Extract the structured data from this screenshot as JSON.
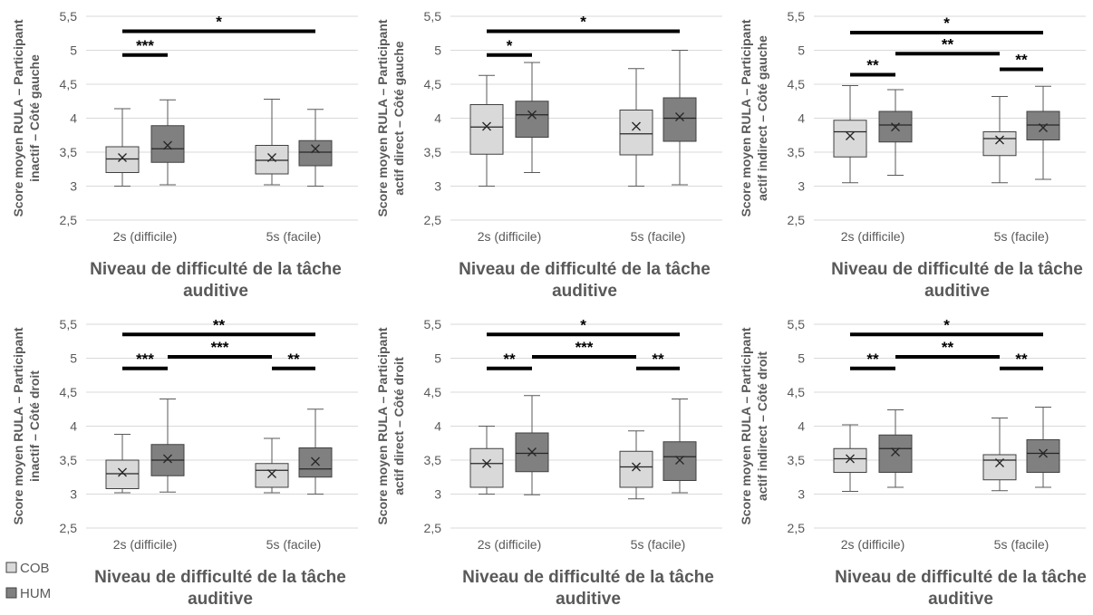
{
  "legend": [
    {
      "label": "COB",
      "color": "#d9d9d9"
    },
    {
      "label": "HUM",
      "color": "#808080"
    }
  ],
  "chart_data": [
    {
      "type": "box",
      "ylabel_line1": "Score moyen RULA – Participant",
      "ylabel_line2": "inactif – Côté gauche",
      "xlabel_line1": "Niveau de difficulté de la tâche",
      "xlabel_line2": "auditive",
      "categories": [
        "2s (difficile)",
        "5s (facile)"
      ],
      "yticks": [
        "2,5",
        "3",
        "3,5",
        "4",
        "4,5",
        "5",
        "5,5"
      ],
      "ylim": [
        2.5,
        5.5
      ],
      "series": [
        {
          "name": "COB",
          "boxes": [
            {
              "min": 3.0,
              "q1": 3.2,
              "median": 3.4,
              "q3": 3.58,
              "max": 4.14,
              "mean": 3.42
            },
            {
              "min": 3.02,
              "q1": 3.18,
              "median": 3.38,
              "q3": 3.6,
              "max": 4.28,
              "mean": 3.42
            }
          ]
        },
        {
          "name": "HUM",
          "boxes": [
            {
              "min": 3.02,
              "q1": 3.35,
              "median": 3.55,
              "q3": 3.89,
              "max": 4.27,
              "mean": 3.6
            },
            {
              "min": 3.0,
              "q1": 3.3,
              "median": 3.5,
              "q3": 3.67,
              "max": 4.13,
              "mean": 3.55
            }
          ]
        }
      ],
      "significance": [
        {
          "label": "***",
          "from": "2s-COB",
          "to": "2s-HUM",
          "y": 4.93
        },
        {
          "label": "*",
          "from": "2s-COB",
          "to": "5s-HUM",
          "y": 5.28
        }
      ]
    },
    {
      "type": "box",
      "ylabel_line1": "Score moyen RULA – Participant",
      "ylabel_line2": "actif direct – Côté gauche",
      "xlabel_line1": "Niveau de difficulté de la tâche",
      "xlabel_line2": "auditive",
      "categories": [
        "2s (difficile)",
        "5s (facile)"
      ],
      "yticks": [
        "2,5",
        "3",
        "3,5",
        "4",
        "4,5",
        "5",
        "5,5"
      ],
      "ylim": [
        2.5,
        5.5
      ],
      "series": [
        {
          "name": "COB",
          "boxes": [
            {
              "min": 3.0,
              "q1": 3.47,
              "median": 3.87,
              "q3": 4.2,
              "max": 4.63,
              "mean": 3.88
            },
            {
              "min": 3.0,
              "q1": 3.46,
              "median": 3.77,
              "q3": 4.12,
              "max": 4.73,
              "mean": 3.88
            }
          ]
        },
        {
          "name": "HUM",
          "boxes": [
            {
              "min": 3.2,
              "q1": 3.72,
              "median": 4.05,
              "q3": 4.25,
              "max": 4.82,
              "mean": 4.05
            },
            {
              "min": 3.02,
              "q1": 3.66,
              "median": 4.0,
              "q3": 4.3,
              "max": 5.0,
              "mean": 4.02
            }
          ]
        }
      ],
      "significance": [
        {
          "label": "*",
          "from": "2s-COB",
          "to": "2s-HUM",
          "y": 4.93
        },
        {
          "label": "*",
          "from": "2s-COB",
          "to": "5s-HUM",
          "y": 5.28
        }
      ]
    },
    {
      "type": "box",
      "ylabel_line1": "Score moyen RULA – Participant",
      "ylabel_line2": "actif indirect – Côté gauche",
      "xlabel_line1": "Niveau de difficulté de la tâche",
      "xlabel_line2": "auditive",
      "categories": [
        "2s (difficile)",
        "5s (facile)"
      ],
      "yticks": [
        "2,5",
        "3",
        "3,5",
        "4",
        "4,5",
        "5",
        "5,5"
      ],
      "ylim": [
        2.5,
        5.5
      ],
      "series": [
        {
          "name": "COB",
          "boxes": [
            {
              "min": 3.05,
              "q1": 3.43,
              "median": 3.8,
              "q3": 3.97,
              "max": 4.48,
              "mean": 3.74
            },
            {
              "min": 3.05,
              "q1": 3.45,
              "median": 3.7,
              "q3": 3.8,
              "max": 4.32,
              "mean": 3.68
            }
          ]
        },
        {
          "name": "HUM",
          "boxes": [
            {
              "min": 3.16,
              "q1": 3.65,
              "median": 3.9,
              "q3": 4.1,
              "max": 4.42,
              "mean": 3.87
            },
            {
              "min": 3.1,
              "q1": 3.68,
              "median": 3.9,
              "q3": 4.1,
              "max": 4.47,
              "mean": 3.86
            }
          ]
        }
      ],
      "significance": [
        {
          "label": "**",
          "from": "2s-COB",
          "to": "2s-HUM",
          "y": 4.64
        },
        {
          "label": "**",
          "from": "5s-COB",
          "to": "5s-HUM",
          "y": 4.72
        },
        {
          "label": "**",
          "from": "2s-HUM",
          "to": "5s-COB",
          "y": 4.95
        },
        {
          "label": "*",
          "from": "2s-COB",
          "to": "5s-HUM",
          "y": 5.26
        }
      ]
    },
    {
      "type": "box",
      "ylabel_line1": "Score moyen RULA – Participant",
      "ylabel_line2": "inactif – Côté droit",
      "xlabel_line1": "Niveau de difficulté de la tâche",
      "xlabel_line2": "auditive",
      "categories": [
        "2s (difficile)",
        "5s (facile)"
      ],
      "yticks": [
        "2,5",
        "3",
        "3,5",
        "4",
        "4,5",
        "5",
        "5,5"
      ],
      "ylim": [
        2.5,
        5.5
      ],
      "series": [
        {
          "name": "COB",
          "boxes": [
            {
              "min": 3.02,
              "q1": 3.08,
              "median": 3.3,
              "q3": 3.5,
              "max": 3.88,
              "mean": 3.32
            },
            {
              "min": 3.02,
              "q1": 3.1,
              "median": 3.35,
              "q3": 3.45,
              "max": 3.82,
              "mean": 3.3
            }
          ]
        },
        {
          "name": "HUM",
          "boxes": [
            {
              "min": 3.03,
              "q1": 3.27,
              "median": 3.5,
              "q3": 3.73,
              "max": 4.4,
              "mean": 3.52
            },
            {
              "min": 3.0,
              "q1": 3.25,
              "median": 3.37,
              "q3": 3.68,
              "max": 4.25,
              "mean": 3.48
            }
          ]
        }
      ],
      "significance": [
        {
          "label": "***",
          "from": "2s-COB",
          "to": "2s-HUM",
          "y": 4.85
        },
        {
          "label": "**",
          "from": "5s-COB",
          "to": "5s-HUM",
          "y": 4.85
        },
        {
          "label": "***",
          "from": "2s-HUM",
          "to": "5s-COB",
          "y": 5.02
        },
        {
          "label": "**",
          "from": "2s-COB",
          "to": "5s-HUM",
          "y": 5.35
        }
      ]
    },
    {
      "type": "box",
      "ylabel_line1": "Score moyen RULA – Participant",
      "ylabel_line2": "actif direct – Côté droit",
      "xlabel_line1": "Niveau de difficulté de la tâche",
      "xlabel_line2": "auditive",
      "categories": [
        "2s (difficile)",
        "5s (facile)"
      ],
      "yticks": [
        "2,5",
        "3",
        "3,5",
        "4",
        "4,5",
        "5",
        "5,5"
      ],
      "ylim": [
        2.5,
        5.5
      ],
      "series": [
        {
          "name": "COB",
          "boxes": [
            {
              "min": 3.0,
              "q1": 3.1,
              "median": 3.45,
              "q3": 3.67,
              "max": 4.0,
              "mean": 3.45
            },
            {
              "min": 2.93,
              "q1": 3.1,
              "median": 3.4,
              "q3": 3.63,
              "max": 3.93,
              "mean": 3.4
            }
          ]
        },
        {
          "name": "HUM",
          "boxes": [
            {
              "min": 2.99,
              "q1": 3.33,
              "median": 3.6,
              "q3": 3.9,
              "max": 4.45,
              "mean": 3.62
            },
            {
              "min": 3.02,
              "q1": 3.2,
              "median": 3.55,
              "q3": 3.77,
              "max": 4.4,
              "mean": 3.5
            }
          ]
        }
      ],
      "significance": [
        {
          "label": "**",
          "from": "2s-COB",
          "to": "2s-HUM",
          "y": 4.85
        },
        {
          "label": "**",
          "from": "5s-COB",
          "to": "5s-HUM",
          "y": 4.85
        },
        {
          "label": "***",
          "from": "2s-HUM",
          "to": "5s-COB",
          "y": 5.02
        },
        {
          "label": "*",
          "from": "2s-COB",
          "to": "5s-HUM",
          "y": 5.35
        }
      ]
    },
    {
      "type": "box",
      "ylabel_line1": "Score moyen RULA – Participant",
      "ylabel_line2": "actif indirect – Côté droit",
      "xlabel_line1": "Niveau de difficulté de la tâche",
      "xlabel_line2": "auditive",
      "categories": [
        "2s (difficile)",
        "5s (facile)"
      ],
      "yticks": [
        "2,5",
        "3",
        "3,5",
        "4",
        "4,5",
        "5",
        "5,5"
      ],
      "ylim": [
        2.5,
        5.5
      ],
      "series": [
        {
          "name": "COB",
          "boxes": [
            {
              "min": 3.04,
              "q1": 3.32,
              "median": 3.52,
              "q3": 3.67,
              "max": 4.02,
              "mean": 3.52
            },
            {
              "min": 3.05,
              "q1": 3.21,
              "median": 3.5,
              "q3": 3.58,
              "max": 4.12,
              "mean": 3.46
            }
          ]
        },
        {
          "name": "HUM",
          "boxes": [
            {
              "min": 3.1,
              "q1": 3.32,
              "median": 3.67,
              "q3": 3.87,
              "max": 4.24,
              "mean": 3.62
            },
            {
              "min": 3.1,
              "q1": 3.32,
              "median": 3.6,
              "q3": 3.8,
              "max": 4.28,
              "mean": 3.6
            }
          ]
        }
      ],
      "significance": [
        {
          "label": "**",
          "from": "2s-COB",
          "to": "2s-HUM",
          "y": 4.85
        },
        {
          "label": "**",
          "from": "5s-COB",
          "to": "5s-HUM",
          "y": 4.85
        },
        {
          "label": "**",
          "from": "2s-HUM",
          "to": "5s-COB",
          "y": 5.02
        },
        {
          "label": "*",
          "from": "2s-COB",
          "to": "5s-HUM",
          "y": 5.35
        }
      ]
    }
  ]
}
